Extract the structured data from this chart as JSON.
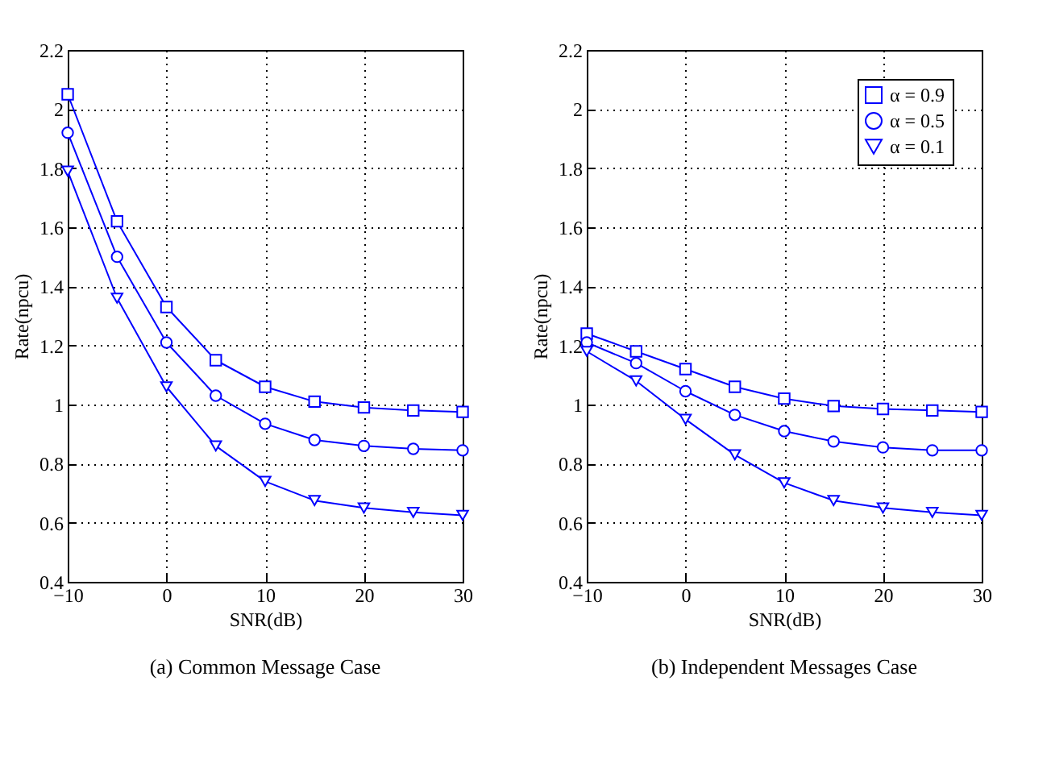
{
  "chart_data": [
    {
      "type": "line",
      "title": "(a) Common Message Case",
      "xlabel": "SNR(dB)",
      "ylabel": "Rate(npcu)",
      "x": [
        -10,
        -5,
        0,
        5,
        10,
        15,
        20,
        25,
        30
      ],
      "xlim": [
        -10,
        30
      ],
      "xticks": [
        -10,
        0,
        10,
        20,
        30
      ],
      "ylim": [
        0.4,
        2.2
      ],
      "yticks": [
        0.4,
        0.6,
        0.8,
        1,
        1.2,
        1.4,
        1.6,
        1.8,
        2,
        2.2
      ],
      "grid": true,
      "legend": false,
      "line_style": "solid",
      "series": [
        {
          "color": "#0000ff",
          "marker": "square",
          "values": [
            2.05,
            1.62,
            1.33,
            1.15,
            1.06,
            1.01,
            0.99,
            0.98,
            0.975
          ]
        },
        {
          "color": "#0000ff",
          "marker": "circle",
          "values": [
            1.92,
            1.5,
            1.21,
            1.03,
            0.935,
            0.88,
            0.86,
            0.85,
            0.845
          ]
        },
        {
          "color": "#0000ff",
          "marker": "triangle",
          "values": [
            1.79,
            1.36,
            1.06,
            0.86,
            0.74,
            0.675,
            0.65,
            0.635,
            0.625
          ]
        }
      ]
    },
    {
      "type": "line",
      "title": "(b) Independent Messages Case",
      "xlabel": "SNR(dB)",
      "ylabel": "Rate(npcu)",
      "x": [
        -10,
        -5,
        0,
        5,
        10,
        15,
        20,
        25,
        30
      ],
      "xlim": [
        -10,
        30
      ],
      "xticks": [
        -10,
        0,
        10,
        20,
        30
      ],
      "ylim": [
        0.4,
        2.2
      ],
      "yticks": [
        0.4,
        0.6,
        0.8,
        1,
        1.2,
        1.4,
        1.6,
        1.8,
        2,
        2.2
      ],
      "grid": true,
      "legend": "top right",
      "line_style": "solid",
      "series": [
        {
          "name": "α = 0.9",
          "color": "#0000ff",
          "marker": "square",
          "values": [
            1.24,
            1.18,
            1.12,
            1.06,
            1.02,
            0.995,
            0.985,
            0.98,
            0.975
          ]
        },
        {
          "name": "α = 0.5",
          "color": "#0000ff",
          "marker": "circle",
          "values": [
            1.21,
            1.14,
            1.045,
            0.965,
            0.91,
            0.875,
            0.855,
            0.845,
            0.845
          ]
        },
        {
          "name": "α = 0.1",
          "color": "#0000ff",
          "marker": "triangle",
          "values": [
            1.18,
            1.08,
            0.95,
            0.83,
            0.735,
            0.675,
            0.65,
            0.635,
            0.625
          ]
        }
      ]
    }
  ]
}
